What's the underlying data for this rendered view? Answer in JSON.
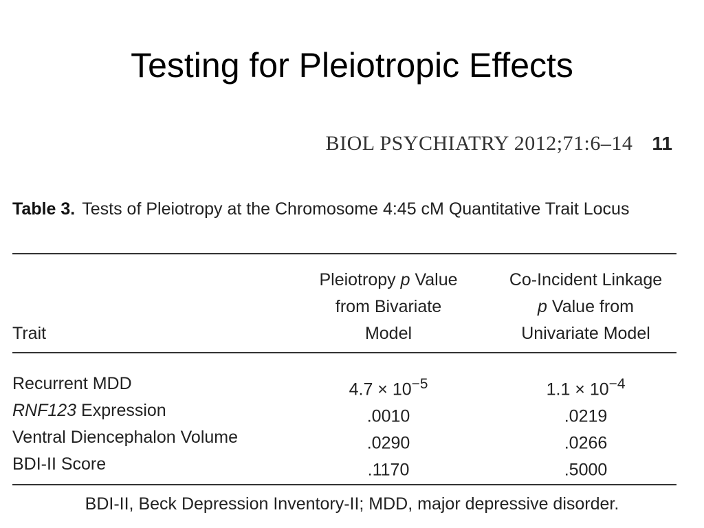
{
  "slide": {
    "title": "Testing for Pleiotropic Effects"
  },
  "citation": {
    "journal_ref": "BIOL PSYCHIATRY 2012;71:6–14",
    "page_number": "11"
  },
  "table": {
    "label": "Table 3.",
    "caption": "Tests of Pleiotropy at the Chromosome 4:45 cM Quantitative Trait Locus",
    "headers": {
      "trait": "Trait",
      "col2": {
        "line1_pre": "Pleiotropy ",
        "line1_italic": "p",
        "line1_post": " Value",
        "line2": "from Bivariate",
        "line3": "Model"
      },
      "col3": {
        "line1": "Co-Incident Linkage",
        "line2_italic": "p",
        "line2_post": " Value from",
        "line3": "Univariate Model"
      }
    },
    "rows": [
      {
        "trait_italic": "",
        "trait": "Recurrent MDD",
        "pleiotropy_p": "4.7 × 10",
        "pleiotropy_p_exp": "−5",
        "linkage_p": "1.1 × 10",
        "linkage_p_exp": "−4"
      },
      {
        "trait_italic": "RNF123",
        "trait": " Expression",
        "pleiotropy_p": ".0010",
        "pleiotropy_p_exp": "",
        "linkage_p": ".0219",
        "linkage_p_exp": ""
      },
      {
        "trait_italic": "",
        "trait": "Ventral Diencephalon Volume",
        "pleiotropy_p": ".0290",
        "pleiotropy_p_exp": "",
        "linkage_p": ".0266",
        "linkage_p_exp": ""
      },
      {
        "trait_italic": "",
        "trait": "BDI-II Score",
        "pleiotropy_p": ".1170",
        "pleiotropy_p_exp": "",
        "linkage_p": ".5000",
        "linkage_p_exp": ""
      }
    ],
    "footnote": "BDI-II, Beck Depression Inventory-II; MDD, major depressive disorder."
  }
}
